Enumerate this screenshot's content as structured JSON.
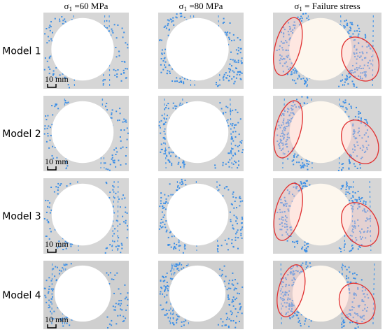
{
  "header": {
    "columns": [
      {
        "symbol": "σ",
        "subscript": "1",
        "text": " =60 MPa"
      },
      {
        "symbol": "σ",
        "subscript": "1",
        "text": " =80 MPa"
      },
      {
        "symbol": "σ",
        "subscript": "1",
        "text": " = Failure stress"
      }
    ]
  },
  "rows": [
    {
      "label": "Model 1",
      "scale": "10 mm"
    },
    {
      "label": "Model 2",
      "scale": "10 mm"
    },
    {
      "label": "Model 3",
      "scale": "10 mm"
    },
    {
      "label": "Model 4",
      "scale": "10 mm"
    }
  ]
}
